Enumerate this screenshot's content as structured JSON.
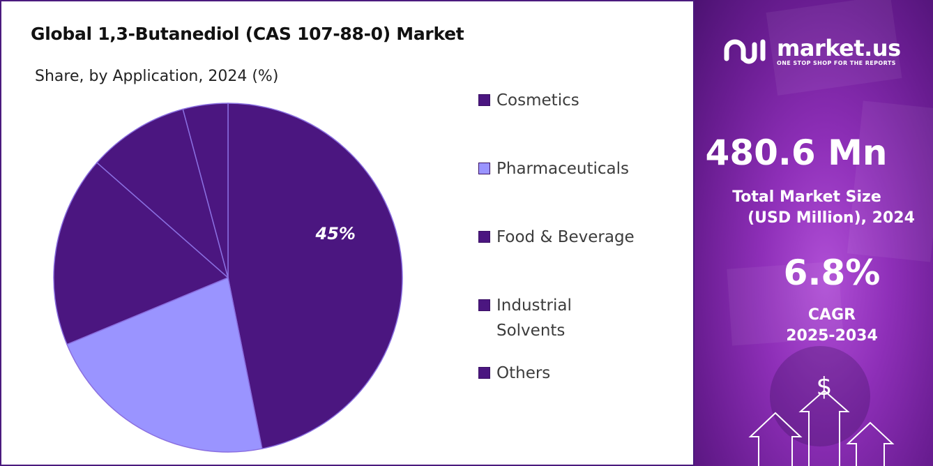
{
  "chart_data": {
    "type": "pie",
    "title": "Global 1,3-Butanediol (CAS 107-88-0) Market",
    "subtitle": "Share, by Application, 2024 (%)",
    "legend_position": "right",
    "slices": [
      {
        "label": "Cosmetics",
        "value": 45,
        "color": "#4b1680",
        "data_label": "45%"
      },
      {
        "label": "Pharmaceuticals",
        "value": 21,
        "color": "#9a94ff",
        "data_label": ""
      },
      {
        "label": "Food & Beverage",
        "value": 17,
        "color": "#4b1680",
        "data_label": ""
      },
      {
        "label": "Industrial Solvents",
        "value": 9,
        "color": "#4b1680",
        "data_label": ""
      },
      {
        "label": "Others",
        "value": 4,
        "color": "#4b1680",
        "data_label": ""
      }
    ]
  },
  "legend": {
    "items": [
      {
        "lines": [
          "Cosmetics"
        ],
        "color": "#4b1680"
      },
      {
        "lines": [
          "Pharmaceuticals"
        ],
        "color": "#9a94ff"
      },
      {
        "lines": [
          "Food & Beverage"
        ],
        "color": "#4b1680"
      },
      {
        "lines": [
          "Industrial",
          "Solvents"
        ],
        "color": "#4b1680"
      },
      {
        "lines": [
          "Others"
        ],
        "color": "#4b1680"
      }
    ]
  },
  "side_panel": {
    "logo_name": "market.us",
    "logo_tagline": "ONE STOP SHOP FOR THE REPORTS",
    "market_size_value": "480.6 Mn",
    "market_size_label_line1": "Total Market Size",
    "market_size_label_line2": "(USD Million), 2024",
    "cagr_value": "6.8%",
    "cagr_label_line1": "CAGR",
    "cagr_label_line2": "2025-2034",
    "dollar_icon": "$",
    "accent_color": "#8e2fb8"
  }
}
